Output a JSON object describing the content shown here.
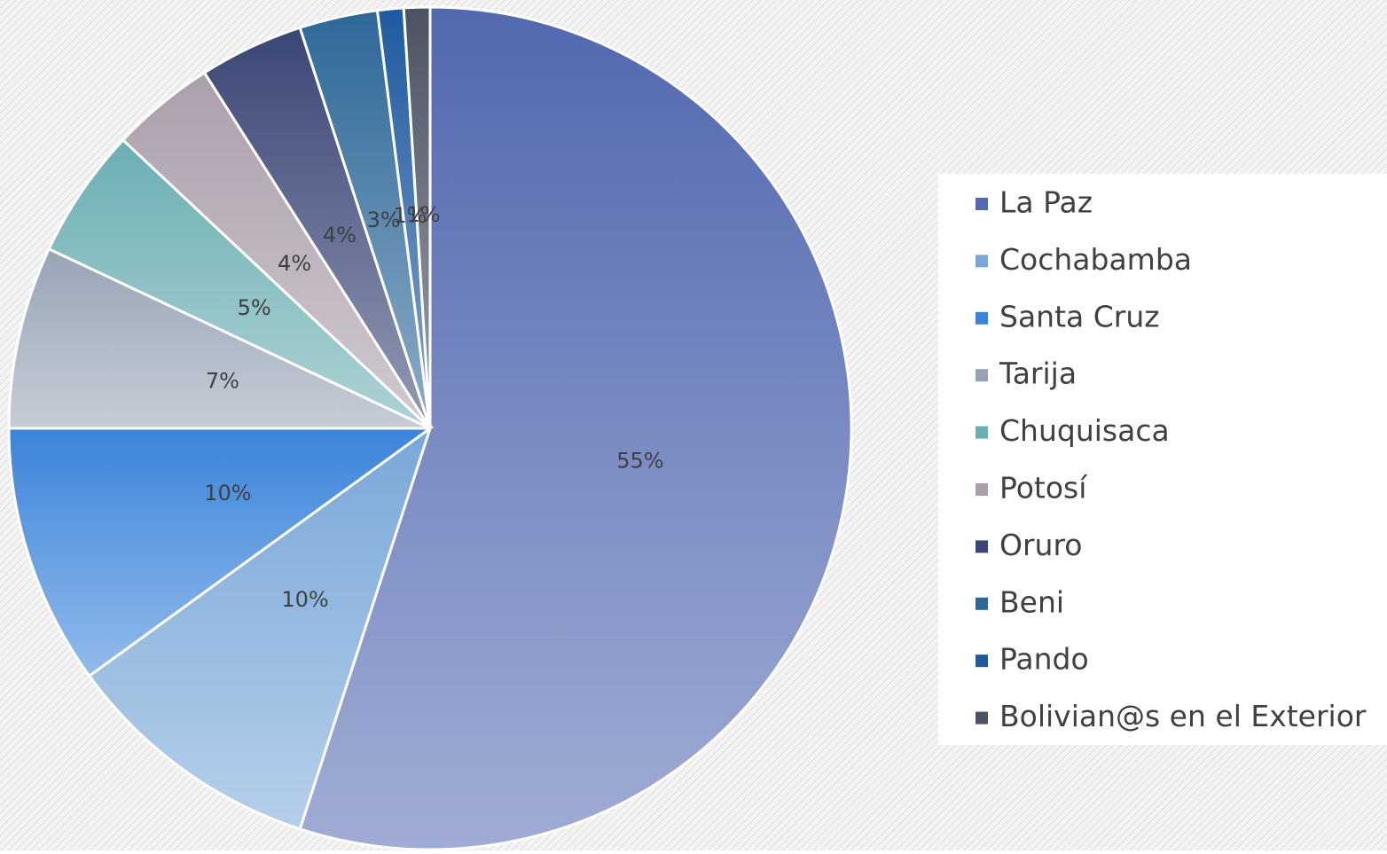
{
  "chart_data": {
    "type": "pie",
    "categories": [
      "La Paz",
      "Cochabamba",
      "Santa Cruz",
      "Tarija",
      "Chuquisaca",
      "Potosí",
      "Oruro",
      "Beni",
      "Pando",
      "Bolivian@s en el Exterior"
    ],
    "values": [
      55,
      10,
      10,
      7,
      5,
      4,
      4,
      3,
      1,
      1
    ],
    "value_labels": [
      "55%",
      "10%",
      "10%",
      "7%",
      "5%",
      "4%",
      "4%",
      "3%",
      "1%",
      "1%"
    ],
    "colors": [
      "#5268b0",
      "#79a7d8",
      "#3a84da",
      "#98a4b6",
      "#6cafb3",
      "#ab9fab",
      "#3a4676",
      "#2e6898",
      "#1f5aa0",
      "#4b5262"
    ],
    "legend": "right"
  }
}
